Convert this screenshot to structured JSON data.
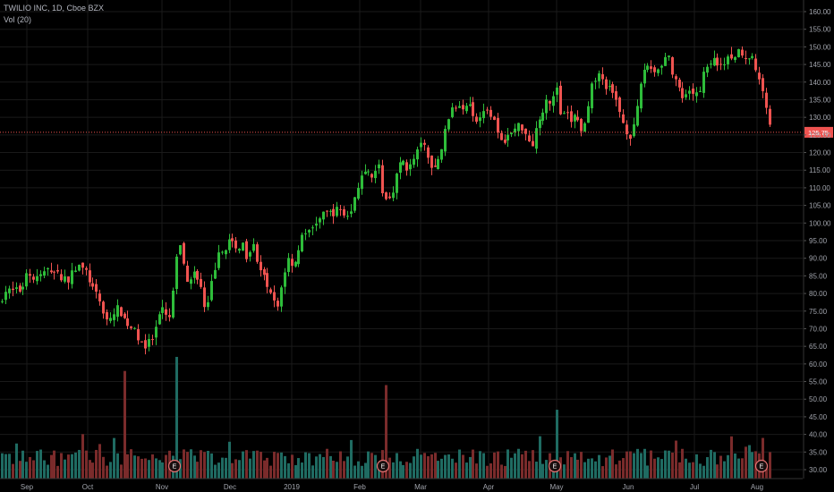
{
  "legend": {
    "symbol_line": "TWILIO INC, 1D, Cboe BZX",
    "volume_line": "Vol (20)"
  },
  "chart_data": {
    "type": "candlestick",
    "symbol": "TWILIO INC",
    "interval": "1D",
    "exchange": "Cboe BZX",
    "price_axis": {
      "range": [
        58,
        162
      ],
      "ticks": [
        60,
        65,
        70,
        75,
        80,
        85,
        90,
        95,
        100,
        105,
        110,
        115,
        120,
        125,
        130,
        135,
        140,
        145,
        150,
        155,
        160
      ],
      "position": "right"
    },
    "volume_axis_label_ticks": [
      30,
      35,
      40,
      45,
      50,
      55,
      60
    ],
    "time_axis": {
      "labels": [
        "Sep",
        "Oct",
        "Nov",
        "Dec",
        "2019",
        "Feb",
        "Mar",
        "Apr",
        "May",
        "Jun",
        "Jul",
        "Aug"
      ]
    },
    "last_price_line": {
      "value": 125.75,
      "label": "125.75",
      "color": "#ef5350",
      "style": "dotted"
    },
    "earnings_markers": {
      "label": "E",
      "months": [
        "Nov",
        "Feb",
        "May",
        "Aug"
      ]
    },
    "colors": {
      "up": "#26a69a",
      "up_body": "#2ebd3a",
      "down": "#ef5350",
      "vol_up": "#1f6b62",
      "vol_down": "#7a2b2b",
      "background": "#000000",
      "grid": "#1a1a1a"
    },
    "close_path_anchors": [
      [
        0,
        77
      ],
      [
        4,
        81
      ],
      [
        12,
        80.5
      ],
      [
        24,
        81
      ],
      [
        30,
        87
      ],
      [
        36,
        84
      ],
      [
        44,
        85
      ],
      [
        56,
        87
      ],
      [
        66,
        85
      ],
      [
        76,
        84
      ],
      [
        86,
        88
      ],
      [
        96,
        86
      ],
      [
        104,
        81
      ],
      [
        112,
        77
      ],
      [
        120,
        72
      ],
      [
        126,
        74
      ],
      [
        132,
        76
      ],
      [
        140,
        72
      ],
      [
        148,
        70
      ],
      [
        156,
        67
      ],
      [
        162,
        65
      ],
      [
        170,
        67
      ],
      [
        176,
        72
      ],
      [
        182,
        76
      ],
      [
        188,
        71
      ],
      [
        194,
        82
      ],
      [
        198,
        92
      ],
      [
        202,
        95
      ],
      [
        206,
        85
      ],
      [
        212,
        83
      ],
      [
        218,
        87
      ],
      [
        224,
        82
      ],
      [
        230,
        73
      ],
      [
        236,
        83
      ],
      [
        242,
        90
      ],
      [
        248,
        92
      ],
      [
        256,
        95
      ],
      [
        264,
        92
      ],
      [
        270,
        95
      ],
      [
        276,
        90
      ],
      [
        282,
        96
      ],
      [
        286,
        90
      ],
      [
        292,
        85
      ],
      [
        298,
        83
      ],
      [
        304,
        78
      ],
      [
        310,
        76
      ],
      [
        316,
        85
      ],
      [
        322,
        90
      ],
      [
        328,
        88
      ],
      [
        334,
        93
      ],
      [
        340,
        98
      ],
      [
        346,
        97
      ],
      [
        352,
        100
      ],
      [
        360,
        102
      ],
      [
        366,
        103
      ],
      [
        372,
        103
      ],
      [
        380,
        104
      ],
      [
        386,
        102
      ],
      [
        392,
        103
      ],
      [
        398,
        110
      ],
      [
        404,
        113
      ],
      [
        410,
        114
      ],
      [
        416,
        112
      ],
      [
        422,
        118
      ],
      [
        426,
        110
      ],
      [
        432,
        106
      ],
      [
        438,
        109
      ],
      [
        444,
        115
      ],
      [
        450,
        118
      ],
      [
        456,
        115
      ],
      [
        462,
        118
      ],
      [
        468,
        121
      ],
      [
        474,
        123
      ],
      [
        478,
        118
      ],
      [
        484,
        114
      ],
      [
        490,
        118
      ],
      [
        496,
        124
      ],
      [
        500,
        130
      ],
      [
        506,
        132
      ],
      [
        512,
        134
      ],
      [
        518,
        133
      ],
      [
        524,
        135
      ],
      [
        530,
        130
      ],
      [
        536,
        129
      ],
      [
        540,
        133
      ],
      [
        546,
        132
      ],
      [
        552,
        130
      ],
      [
        558,
        122
      ],
      [
        564,
        124
      ],
      [
        570,
        125
      ],
      [
        576,
        127
      ],
      [
        582,
        128
      ],
      [
        588,
        125
      ],
      [
        594,
        122
      ],
      [
        600,
        128
      ],
      [
        606,
        132
      ],
      [
        612,
        137
      ],
      [
        616,
        133
      ],
      [
        622,
        139
      ],
      [
        626,
        130
      ],
      [
        632,
        131
      ],
      [
        638,
        129
      ],
      [
        644,
        131
      ],
      [
        650,
        125
      ],
      [
        656,
        130
      ],
      [
        662,
        140
      ],
      [
        668,
        142
      ],
      [
        674,
        140
      ],
      [
        680,
        138
      ],
      [
        686,
        136
      ],
      [
        692,
        132
      ],
      [
        698,
        127
      ],
      [
        704,
        125
      ],
      [
        710,
        128
      ],
      [
        714,
        137
      ],
      [
        718,
        143
      ],
      [
        722,
        145
      ],
      [
        728,
        144
      ],
      [
        734,
        143
      ],
      [
        740,
        146
      ],
      [
        746,
        148
      ],
      [
        752,
        141
      ],
      [
        758,
        138
      ],
      [
        762,
        135
      ],
      [
        768,
        136
      ],
      [
        774,
        137
      ],
      [
        780,
        136
      ],
      [
        786,
        143
      ],
      [
        792,
        146
      ],
      [
        798,
        146
      ],
      [
        804,
        145
      ],
      [
        810,
        146
      ],
      [
        816,
        147
      ],
      [
        822,
        148
      ],
      [
        828,
        149
      ],
      [
        834,
        147
      ],
      [
        840,
        148
      ],
      [
        844,
        144
      ],
      [
        848,
        140
      ],
      [
        852,
        138
      ],
      [
        856,
        134
      ],
      [
        860,
        128
      ],
      [
        861,
        125.75
      ]
    ],
    "volume_spikes_M": [
      {
        "month": "Oct-Nov",
        "value": 58
      },
      {
        "month": "Nov",
        "value": 62
      },
      {
        "month": "Feb",
        "value": 54
      },
      {
        "month": "May",
        "value": 47
      },
      {
        "month": "Aug",
        "value": 39
      }
    ],
    "volume_baseline_M": [
      31,
      36
    ]
  }
}
